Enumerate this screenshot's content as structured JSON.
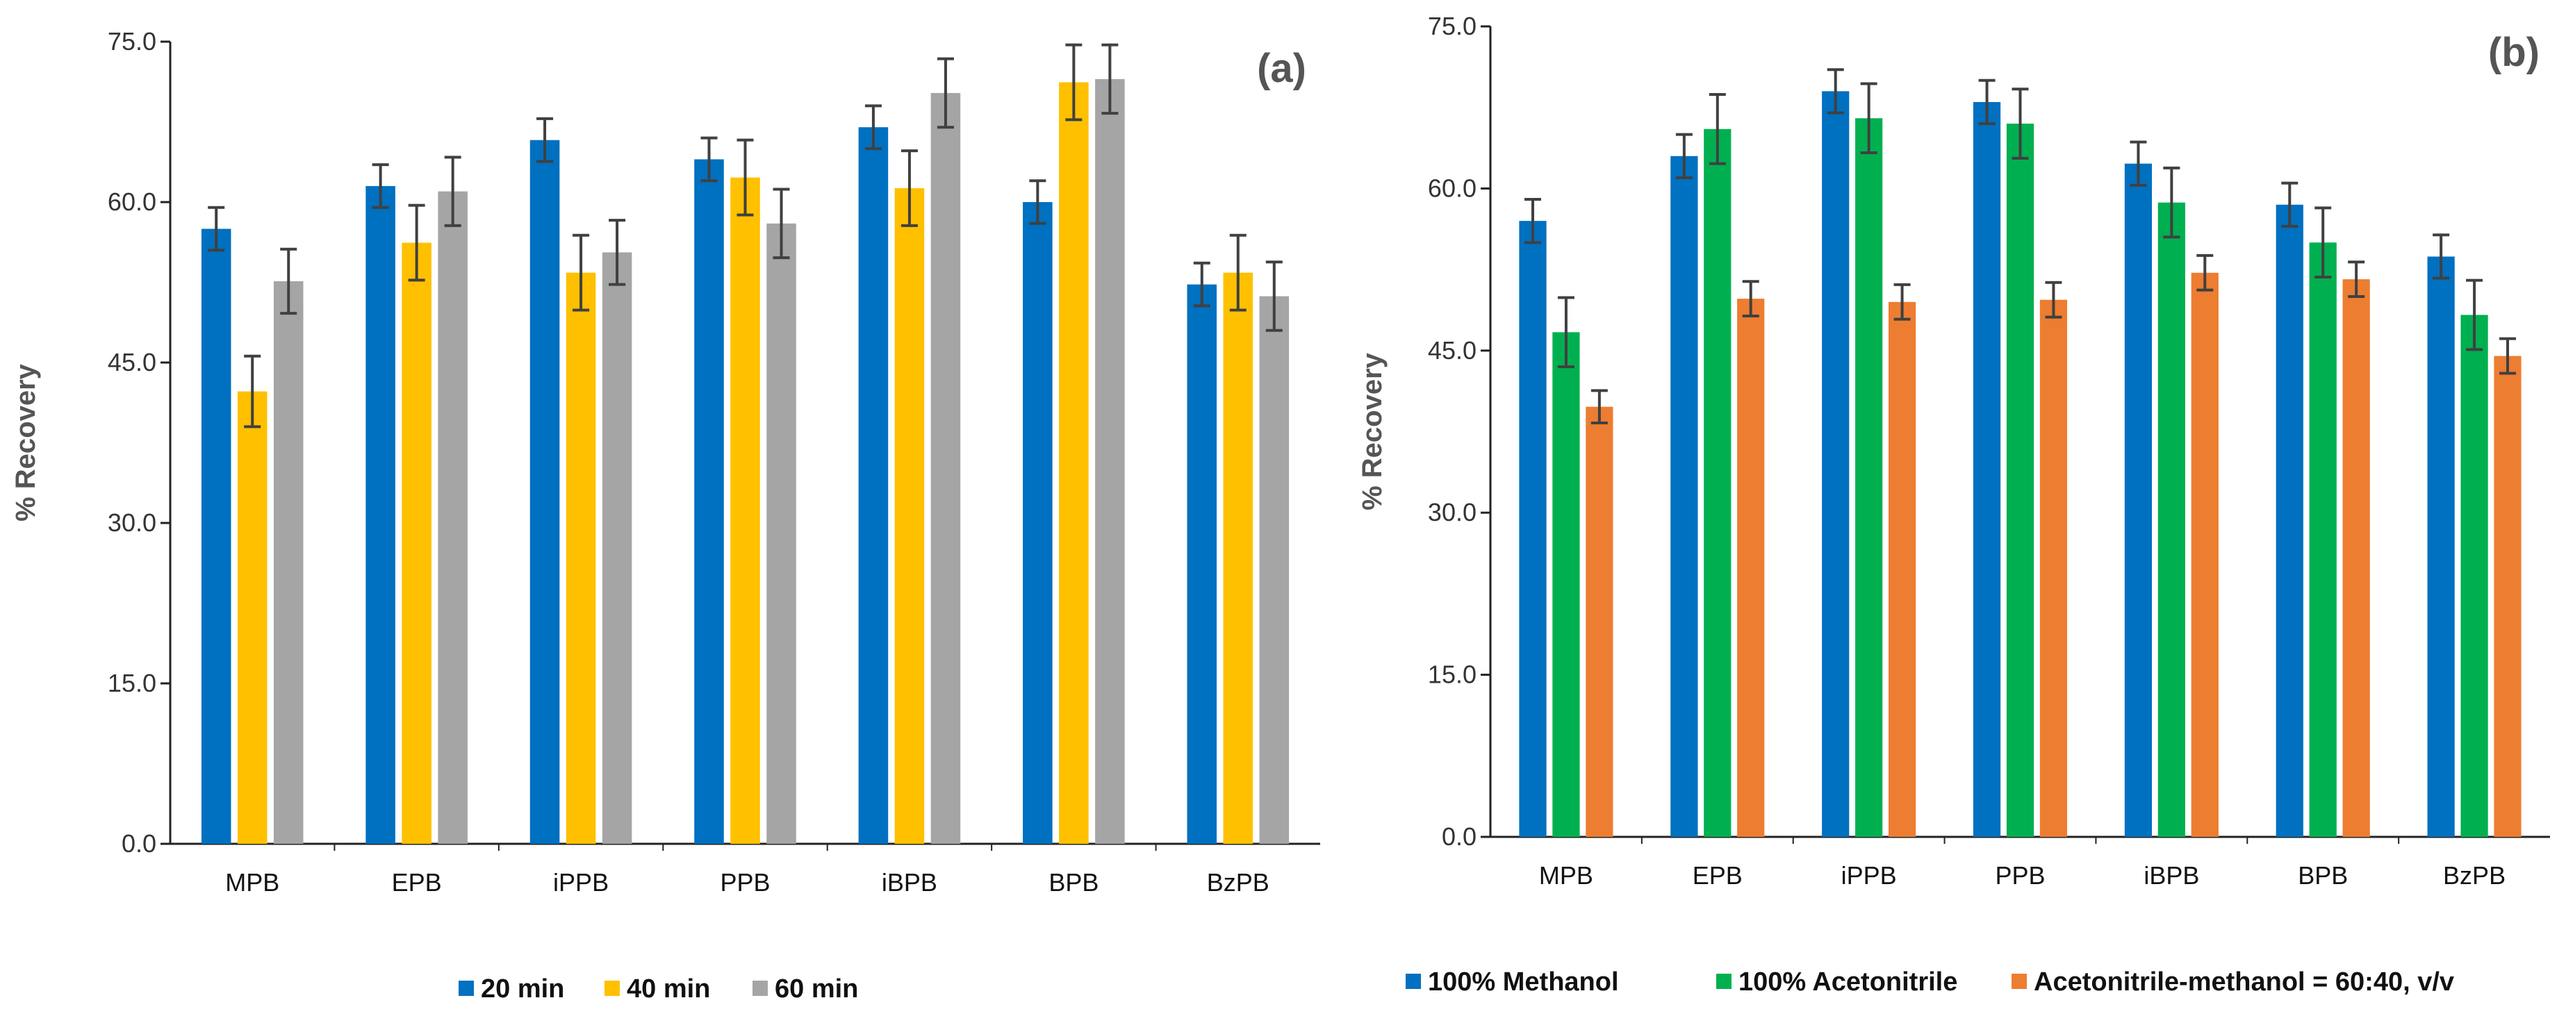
{
  "chart_data": [
    {
      "type": "bar",
      "panel_label": "(a)",
      "title": "",
      "xlabel": "",
      "ylabel": "% Recovery",
      "ylim": [
        0,
        75
      ],
      "yticks": [
        "0.0",
        "15.0",
        "30.0",
        "45.0",
        "60.0",
        "75.0"
      ],
      "categories": [
        "MPB",
        "EPB",
        "iPPB",
        "PPB",
        "iBPB",
        "BPB",
        "BzPB"
      ],
      "legend_position": "bottom",
      "series": [
        {
          "name": "20 min",
          "color": "#0070C0",
          "values": [
            57.5,
            61.5,
            65.8,
            64.0,
            67.0,
            60.0,
            52.3
          ],
          "errors": [
            2.0,
            2.0,
            2.0,
            2.0,
            2.0,
            2.0,
            2.0
          ]
        },
        {
          "name": "40 min",
          "color": "#FFC000",
          "values": [
            42.3,
            56.2,
            53.4,
            62.3,
            61.3,
            71.2,
            53.4
          ],
          "errors": [
            3.3,
            3.5,
            3.5,
            3.5,
            3.5,
            3.5,
            3.5
          ]
        },
        {
          "name": "60 min",
          "color": "#A5A5A5",
          "values": [
            52.6,
            61.0,
            55.3,
            58.0,
            70.2,
            71.5,
            51.2
          ],
          "errors": [
            3.0,
            3.2,
            3.0,
            3.2,
            3.2,
            3.2,
            3.2
          ]
        }
      ]
    },
    {
      "type": "bar",
      "panel_label": "(b)",
      "title": "",
      "xlabel": "",
      "ylabel": "% Recovery",
      "ylim": [
        0,
        75
      ],
      "yticks": [
        "0.0",
        "15.0",
        "30.0",
        "45.0",
        "60.0",
        "75.0"
      ],
      "categories": [
        "MPB",
        "EPB",
        "iPPB",
        "PPB",
        "iBPB",
        "BPB",
        "BzPB"
      ],
      "legend_position": "bottom",
      "series": [
        {
          "name": "100% Methanol",
          "color": "#0070C0",
          "values": [
            57.0,
            63.0,
            69.0,
            68.0,
            62.3,
            58.5,
            53.7
          ],
          "errors": [
            2.0,
            2.0,
            2.0,
            2.0,
            2.0,
            2.0,
            2.0
          ]
        },
        {
          "name": "100% Acetonitrile",
          "color": "#00B050",
          "values": [
            46.7,
            65.5,
            66.5,
            66.0,
            58.7,
            55.0,
            48.3
          ],
          "errors": [
            3.2,
            3.2,
            3.2,
            3.2,
            3.2,
            3.2,
            3.2
          ]
        },
        {
          "name": "Acetonitrile-methanol = 60:40, v/v",
          "color": "#ED7D31",
          "values": [
            39.8,
            49.8,
            49.5,
            49.7,
            52.2,
            51.6,
            44.5
          ],
          "errors": [
            1.5,
            1.6,
            1.6,
            1.6,
            1.6,
            1.6,
            1.6
          ]
        }
      ]
    }
  ]
}
